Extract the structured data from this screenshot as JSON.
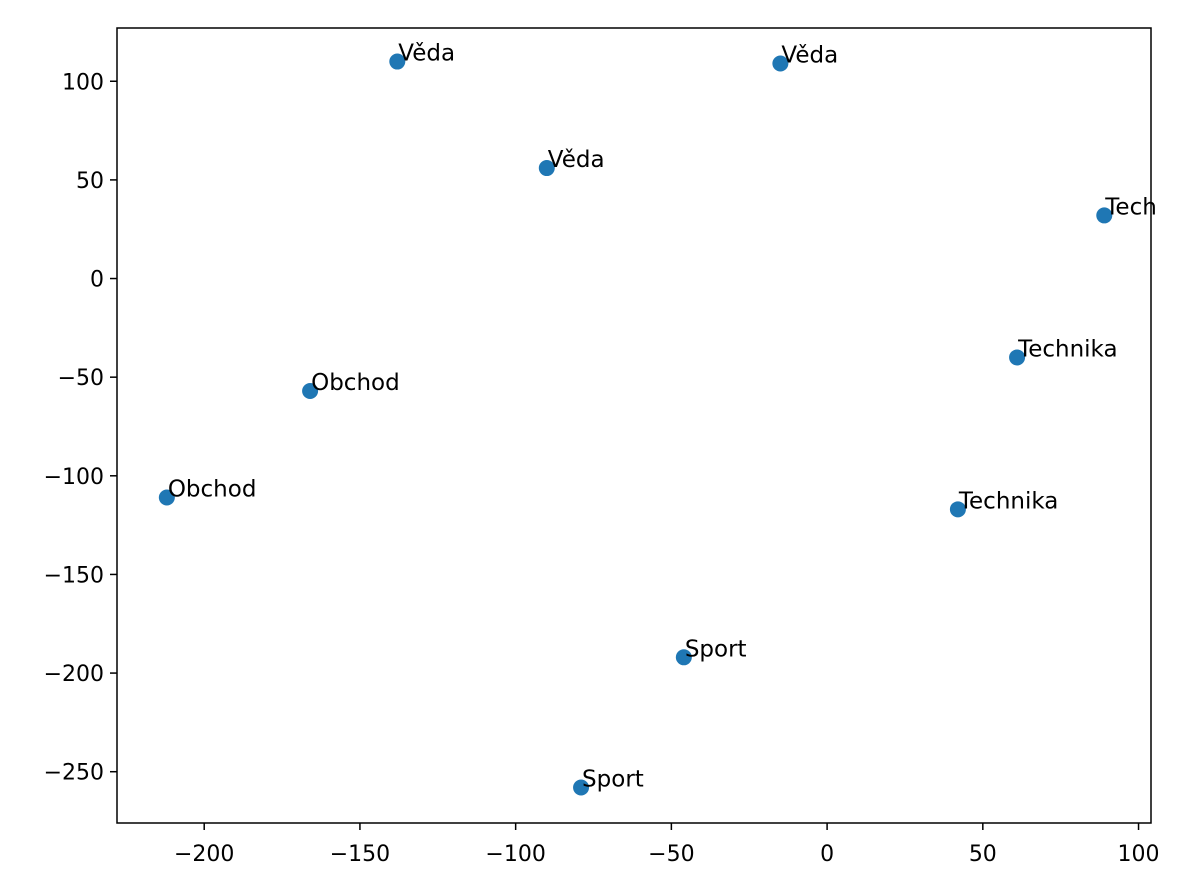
{
  "chart_data": {
    "type": "scatter",
    "title": "",
    "xlabel": "",
    "ylabel": "",
    "xlim": [
      -228,
      104
    ],
    "ylim": [
      -276,
      127
    ],
    "xticks": [
      -200,
      -150,
      -100,
      -50,
      0,
      50,
      100
    ],
    "yticks": [
      -250,
      -200,
      -150,
      -100,
      -50,
      0,
      50,
      100
    ],
    "xtick_labels": [
      "−200",
      "−150",
      "−100",
      "−50",
      "0",
      "50",
      "100"
    ],
    "ytick_labels": [
      "−250",
      "−200",
      "−150",
      "−100",
      "−50",
      "0",
      "50",
      "100"
    ],
    "grid": false,
    "marker_color": "#1f77b4",
    "points": [
      {
        "x": -138,
        "y": 110,
        "label": "Věda"
      },
      {
        "x": -15,
        "y": 109,
        "label": "Věda"
      },
      {
        "x": -90,
        "y": 56,
        "label": "Věda"
      },
      {
        "x": 89,
        "y": 32,
        "label": "Tech"
      },
      {
        "x": 61,
        "y": -40,
        "label": "Technika"
      },
      {
        "x": -166,
        "y": -57,
        "label": "Obchod"
      },
      {
        "x": -212,
        "y": -111,
        "label": "Obchod"
      },
      {
        "x": 42,
        "y": -117,
        "label": "Technika"
      },
      {
        "x": -46,
        "y": -192,
        "label": "Sport"
      },
      {
        "x": -79,
        "y": -258,
        "label": "Sport"
      }
    ]
  }
}
